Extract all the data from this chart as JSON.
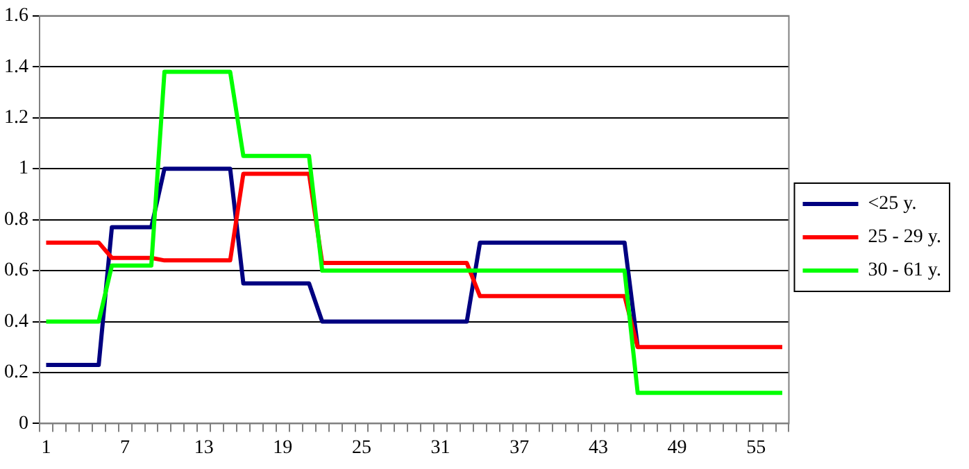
{
  "chart_data": {
    "type": "line",
    "categories": [
      "1",
      null,
      null,
      null,
      null,
      null,
      "7",
      null,
      null,
      null,
      null,
      null,
      "13",
      null,
      null,
      null,
      null,
      null,
      "19",
      null,
      null,
      null,
      null,
      null,
      "25",
      null,
      null,
      null,
      null,
      null,
      "31",
      null,
      null,
      null,
      null,
      null,
      "37",
      null,
      null,
      null,
      null,
      null,
      "43",
      null,
      null,
      null,
      null,
      null,
      "49",
      null,
      null,
      null,
      null,
      null,
      "55",
      null,
      null
    ],
    "series": [
      {
        "name": "<25 y.",
        "color": "#000080",
        "values": [
          0.23,
          0.23,
          0.23,
          0.23,
          0.23,
          0.77,
          0.77,
          0.77,
          0.77,
          1.0,
          1.0,
          1.0,
          1.0,
          1.0,
          1.0,
          0.55,
          0.55,
          0.55,
          0.55,
          0.55,
          0.55,
          0.4,
          0.4,
          0.4,
          0.4,
          0.4,
          0.4,
          0.4,
          0.4,
          0.4,
          0.4,
          0.4,
          0.4,
          0.71,
          0.71,
          0.71,
          0.71,
          0.71,
          0.71,
          0.71,
          0.71,
          0.71,
          0.71,
          0.71,
          0.71,
          0.3,
          null,
          null,
          null,
          null,
          null,
          null,
          null,
          null,
          null,
          null,
          null
        ]
      },
      {
        "name": "25 - 29 y.",
        "color": "#ff0000",
        "values": [
          0.71,
          0.71,
          0.71,
          0.71,
          0.71,
          0.65,
          0.65,
          0.65,
          0.65,
          0.64,
          0.64,
          0.64,
          0.64,
          0.64,
          0.64,
          0.98,
          0.98,
          0.98,
          0.98,
          0.98,
          0.98,
          0.63,
          0.63,
          0.63,
          0.63,
          0.63,
          0.63,
          0.63,
          0.63,
          0.63,
          0.63,
          0.63,
          0.63,
          0.5,
          0.5,
          0.5,
          0.5,
          0.5,
          0.5,
          0.5,
          0.5,
          0.5,
          0.5,
          0.5,
          0.5,
          0.3,
          0.3,
          0.3,
          0.3,
          0.3,
          0.3,
          0.3,
          0.3,
          0.3,
          0.3,
          0.3,
          0.3
        ]
      },
      {
        "name": "30 - 61 y.",
        "color": "#00ff00",
        "values": [
          0.4,
          0.4,
          0.4,
          0.4,
          0.4,
          0.62,
          0.62,
          0.62,
          0.62,
          1.38,
          1.38,
          1.38,
          1.38,
          1.38,
          1.38,
          1.05,
          1.05,
          1.05,
          1.05,
          1.05,
          1.05,
          0.6,
          0.6,
          0.6,
          0.6,
          0.6,
          0.6,
          0.6,
          0.6,
          0.6,
          0.6,
          0.6,
          0.6,
          0.6,
          0.6,
          0.6,
          0.6,
          0.6,
          0.6,
          0.6,
          0.6,
          0.6,
          0.6,
          0.6,
          0.6,
          0.12,
          0.12,
          0.12,
          0.12,
          0.12,
          0.12,
          0.12,
          0.12,
          0.12,
          0.12,
          0.12,
          0.12
        ]
      }
    ],
    "ylim": [
      0,
      1.6
    ],
    "yticks": [
      0,
      0.2,
      0.4,
      0.6,
      0.8,
      1,
      1.2,
      1.4,
      1.6
    ],
    "grid": "y",
    "legend": "right",
    "marker": "none",
    "line_style": "solid"
  }
}
